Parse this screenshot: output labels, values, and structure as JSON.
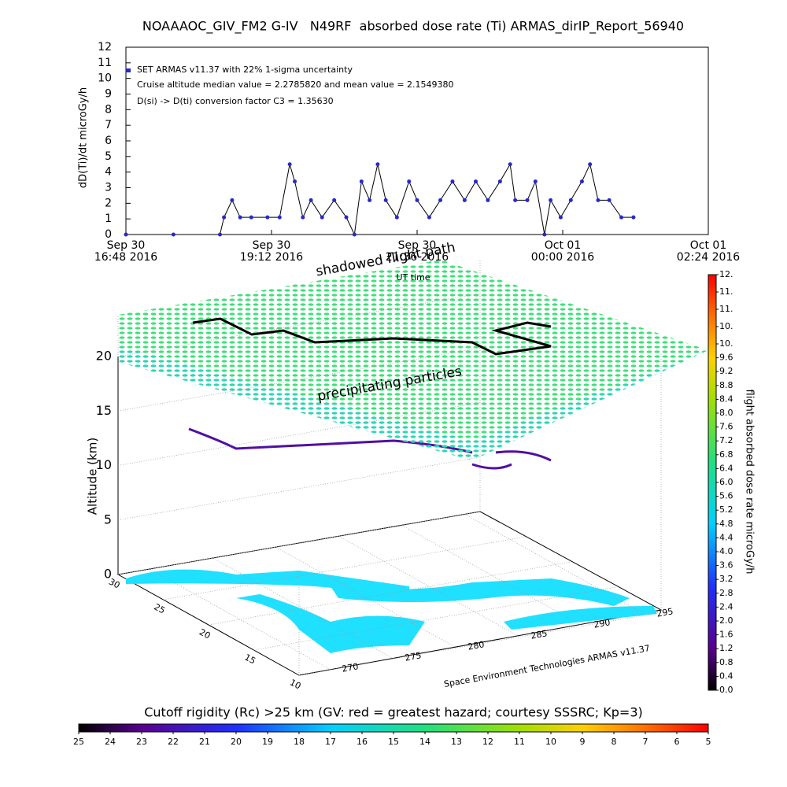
{
  "chart_data": [
    {
      "type": "line",
      "title": "NOAAAOC_GIV_FM2 G-IV   N49RF  absorbed dose rate (Ti) ARMAS_dirIP_Report_56940",
      "ylabel": "dD(Ti)/dt microGy/h",
      "xlabel": "UT time",
      "annotations": [
        "Cruise altitude median value = 2.2785820 and mean value = 2.1549380",
        "D(si) -> D(ti) conversion factor C3 = 1.35630"
      ],
      "xlim": [
        "2016-09-30T16:48",
        "2016-10-01T02:24"
      ],
      "xticks": [
        {
          "value": "2016-09-30T16:48",
          "label": [
            "Sep 30",
            "16:48 2016"
          ]
        },
        {
          "value": "2016-09-30T19:12",
          "label": [
            "Sep 30",
            "19:12 2016"
          ]
        },
        {
          "value": "2016-09-30T21:36",
          "label": [
            "Sep 30",
            "21:36 2016"
          ]
        },
        {
          "value": "2016-10-01T00:00",
          "label": [
            "Oct 01",
            "00:00 2016"
          ]
        },
        {
          "value": "2016-10-01T02:24",
          "label": [
            "Oct 01",
            "02:24 2016"
          ]
        }
      ],
      "ylim": [
        0,
        12
      ],
      "yticks": [
        0,
        1,
        2,
        3,
        4,
        5,
        6,
        7,
        8,
        9,
        10,
        11,
        12
      ],
      "x": [
        "2016-09-30T16:48",
        "2016-09-30T17:35",
        "2016-09-30T18:21",
        "2016-09-30T18:25",
        "2016-09-30T18:33",
        "2016-09-30T18:41",
        "2016-09-30T18:52",
        "2016-09-30T19:08",
        "2016-09-30T19:20",
        "2016-09-30T19:30",
        "2016-09-30T19:35",
        "2016-09-30T19:43",
        "2016-09-30T19:51",
        "2016-09-30T20:02",
        "2016-09-30T20:14",
        "2016-09-30T20:26",
        "2016-09-30T20:34",
        "2016-09-30T20:41",
        "2016-09-30T20:49",
        "2016-09-30T20:57",
        "2016-09-30T21:05",
        "2016-09-30T21:16",
        "2016-09-30T21:28",
        "2016-09-30T21:36",
        "2016-09-30T21:48",
        "2016-09-30T21:59",
        "2016-09-30T22:11",
        "2016-09-30T22:23",
        "2016-09-30T22:34",
        "2016-09-30T22:46",
        "2016-09-30T22:58",
        "2016-09-30T23:08",
        "2016-09-30T23:13",
        "2016-09-30T23:25",
        "2016-09-30T23:33",
        "2016-09-30T23:42",
        "2016-09-30T23:48",
        "2016-09-30T23:58",
        "2016-10-01T00:08",
        "2016-10-01T00:19",
        "2016-10-01T00:27",
        "2016-10-01T00:35",
        "2016-10-01T00:46",
        "2016-10-01T00:58",
        "2016-10-01T01:10"
      ],
      "series": [
        {
          "name": "SET ARMAS v11.37 with 22% 1-sigma uncertainty",
          "color": "#2828c8",
          "values": [
            0,
            0,
            0,
            1.1,
            2.2,
            1.1,
            1.1,
            1.1,
            1.1,
            4.5,
            3.4,
            1.1,
            2.2,
            1.1,
            2.2,
            1.1,
            0,
            3.4,
            2.2,
            4.5,
            2.2,
            1.1,
            3.4,
            2.2,
            1.1,
            2.2,
            3.4,
            2.2,
            3.4,
            2.2,
            3.4,
            4.5,
            2.2,
            2.2,
            3.4,
            0,
            2.2,
            1.1,
            2.2,
            3.4,
            4.5,
            2.2,
            2.2,
            1.1,
            1.1
          ]
        }
      ]
    },
    {
      "type": "3d",
      "annotations": [
        "shadowed flight path",
        "precipitating particles"
      ],
      "zlabel": "Altitude (km)",
      "zlim": [
        0,
        20
      ],
      "zticks": [
        0,
        5,
        10,
        15,
        20
      ],
      "ylim": [
        30,
        10
      ],
      "yticks": [
        30,
        25,
        20,
        15,
        10
      ],
      "xlim": [
        270,
        295
      ],
      "xticks": [
        270,
        275,
        280,
        285,
        290,
        295
      ],
      "credit": "Space Environment Technologies ARMAS v11.37"
    },
    {
      "type": "colorbar",
      "label": "flight absorbed dose rate microGy/h",
      "lim": [
        0,
        12
      ],
      "ticks": [
        {
          "value": 0,
          "label": "0.0"
        },
        0.4,
        0.8,
        1.2,
        1.6,
        {
          "value": 2,
          "label": "2.0"
        },
        2.4,
        2.8,
        3.2,
        3.6,
        {
          "value": 4,
          "label": "4.0"
        },
        4.4,
        4.8,
        5.2,
        5.6,
        {
          "value": 6,
          "label": "6.0"
        },
        6.4,
        6.8,
        7.2,
        7.6,
        {
          "value": 8,
          "label": "8.0"
        },
        8.4,
        8.8,
        9.2,
        9.6,
        {
          "value": 10,
          "label": "10."
        },
        {
          "value": 10.5,
          "label": "10."
        },
        {
          "value": 11,
          "label": "11."
        },
        {
          "value": 11.5,
          "label": "11."
        },
        {
          "value": 12,
          "label": "12."
        }
      ]
    },
    {
      "type": "colorbar",
      "label": "Cutoff rigidity (Rc) >25 km (GV: red = greatest hazard; courtesy SSSRC; Kp=3)",
      "lim": [
        25,
        5
      ],
      "ticks": [
        25,
        24,
        23,
        22,
        21,
        20,
        19,
        18,
        17,
        16,
        15,
        14,
        13,
        12,
        11,
        10,
        9,
        8,
        7,
        6,
        5
      ]
    }
  ]
}
